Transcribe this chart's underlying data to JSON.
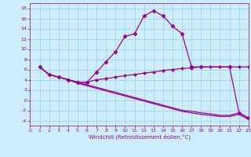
{
  "xlabel": "Windchill (Refroidissement éolien,°C)",
  "background_color": "#cceeff",
  "line_color": "#990099",
  "xlim": [
    0,
    23
  ],
  "ylim": [
    -5,
    19
  ],
  "xticks": [
    0,
    1,
    2,
    3,
    4,
    5,
    6,
    7,
    8,
    9,
    10,
    11,
    12,
    13,
    14,
    15,
    16,
    17,
    18,
    19,
    20,
    21,
    22,
    23
  ],
  "yticks": [
    -4,
    -2,
    0,
    2,
    4,
    6,
    8,
    10,
    12,
    14,
    16,
    18
  ],
  "series": [
    {
      "x": [
        1,
        2,
        3,
        4,
        5,
        6,
        7,
        8,
        9,
        10,
        11,
        12,
        13,
        14,
        15,
        16,
        17,
        18,
        21,
        22,
        23
      ],
      "y": [
        6.5,
        5.0,
        4.5,
        4.0,
        3.5,
        3.5,
        5.5,
        7.5,
        9.5,
        12.5,
        13.0,
        16.5,
        17.5,
        16.5,
        14.5,
        13.0,
        6.5,
        6.5,
        6.5,
        -2.5,
        -3.5
      ],
      "marker": "D",
      "markersize": 2.5,
      "linewidth": 0.9
    },
    {
      "x": [
        1,
        2,
        3,
        4,
        5,
        6,
        7,
        8,
        9,
        10,
        11,
        12,
        13,
        14,
        15,
        16,
        17,
        18,
        19,
        20,
        21,
        22,
        23
      ],
      "y": [
        6.5,
        5.0,
        4.5,
        4.0,
        3.5,
        3.5,
        4.0,
        4.2,
        4.5,
        4.8,
        5.0,
        5.3,
        5.5,
        5.8,
        6.0,
        6.2,
        6.3,
        6.5,
        6.5,
        6.5,
        6.5,
        6.5,
        6.5
      ],
      "marker": "D",
      "markersize": 2.0,
      "linewidth": 0.9
    },
    {
      "x": [
        1,
        2,
        3,
        4,
        5,
        6,
        7,
        8,
        9,
        10,
        11,
        12,
        13,
        14,
        15,
        16,
        17,
        18,
        19,
        20,
        21,
        22,
        23
      ],
      "y": [
        6.5,
        5.0,
        4.5,
        4.0,
        3.5,
        3.0,
        2.5,
        2.0,
        1.5,
        1.0,
        0.5,
        0.0,
        -0.5,
        -1.0,
        -1.5,
        -2.0,
        -2.2,
        -2.5,
        -2.7,
        -3.0,
        -3.0,
        -2.5,
        -3.5
      ],
      "marker": null,
      "markersize": 0,
      "linewidth": 0.9
    },
    {
      "x": [
        1,
        2,
        3,
        4,
        5,
        6,
        7,
        8,
        9,
        10,
        11,
        12,
        13,
        14,
        15,
        16,
        17,
        18,
        19,
        20,
        21,
        22,
        23
      ],
      "y": [
        6.5,
        5.0,
        4.5,
        4.0,
        3.3,
        2.8,
        2.3,
        1.8,
        1.3,
        0.8,
        0.3,
        -0.2,
        -0.7,
        -1.2,
        -1.7,
        -2.2,
        -2.5,
        -2.8,
        -3.0,
        -3.2,
        -3.2,
        -2.8,
        -3.8
      ],
      "marker": null,
      "markersize": 0,
      "linewidth": 0.9
    }
  ]
}
